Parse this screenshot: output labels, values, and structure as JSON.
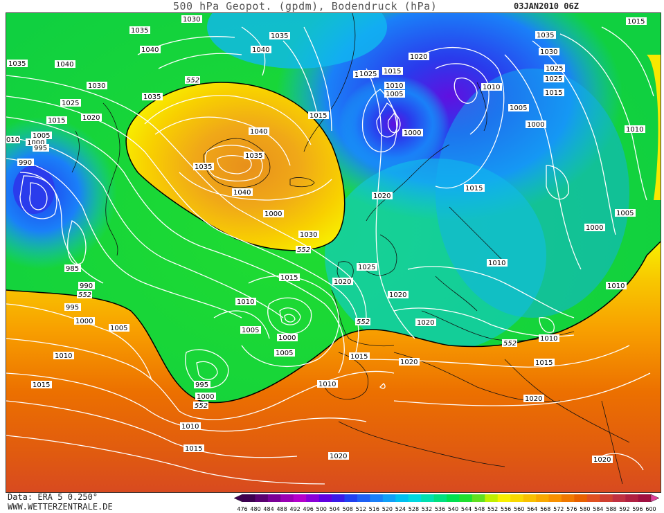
{
  "title": {
    "main": "500 hPa Geopot. (gpdm), Bodendruck (hPa)",
    "date": "03JAN2010 06Z"
  },
  "footer": {
    "data_source": "Data: ERA 5 0.250°",
    "website": "WWW.WETTERZENTRALE.DE"
  },
  "colorbar": {
    "ticks": [
      "476",
      "480",
      "484",
      "488",
      "492",
      "496",
      "500",
      "504",
      "508",
      "512",
      "516",
      "520",
      "524",
      "528",
      "532",
      "536",
      "540",
      "544",
      "548",
      "552",
      "556",
      "560",
      "564",
      "568",
      "572",
      "576",
      "580",
      "584",
      "588",
      "592",
      "596",
      "600"
    ],
    "colors": [
      "#3d0050",
      "#5a0070",
      "#7a0096",
      "#9a00b4",
      "#b400cc",
      "#8a00d8",
      "#6000e0",
      "#3a1ae8",
      "#2040f0",
      "#1e60f4",
      "#1a80f8",
      "#10a0f8",
      "#00c0f0",
      "#00d8e0",
      "#00e0b0",
      "#00e080",
      "#00e050",
      "#20e030",
      "#60e020",
      "#c0f000",
      "#f8f000",
      "#f8d800",
      "#f8c000",
      "#f8a800",
      "#f89000",
      "#f07800",
      "#e86000",
      "#e05020",
      "#d04030",
      "#c03040",
      "#b02040",
      "#a01040"
    ],
    "highlight_tick": "552"
  },
  "isobar_labels": [
    "1030",
    "1035",
    "1040",
    "1035",
    "1040",
    "1035",
    "1040",
    "1030",
    "1025",
    "1020",
    "1015",
    "1010",
    "1005",
    "1000",
    "995",
    "990",
    "985",
    "990",
    "995",
    "1000",
    "1005",
    "1010",
    "1015",
    "1010",
    "1015",
    "1035",
    "1040",
    "1035",
    "1040",
    "1035",
    "1030",
    "1015",
    "1010",
    "1005",
    "1000",
    "1005",
    "1000",
    "995",
    "1000",
    "1010",
    "1015",
    "1020",
    "1025",
    "1020",
    "1015",
    "1010",
    "1005",
    "1000",
    "1035",
    "1020",
    "1025",
    "1015",
    "1010",
    "1005",
    "1000",
    "1010",
    "1015",
    "1020",
    "1020",
    "1020",
    "1020",
    "1025",
    "1015",
    "1010",
    "1015",
    "1020",
    "1020",
    "1035",
    "1030",
    "1025",
    "1020",
    "1015",
    "1005",
    "1000",
    "1015",
    "1010",
    "1005",
    "1000",
    "1010",
    "1010",
    "1010",
    "1015",
    "1020",
    "1020",
    "1015",
    "1015"
  ],
  "contour_552_labels": [
    "552",
    "552",
    "552",
    "552",
    "552",
    "552"
  ],
  "accent_color": "#00e050"
}
